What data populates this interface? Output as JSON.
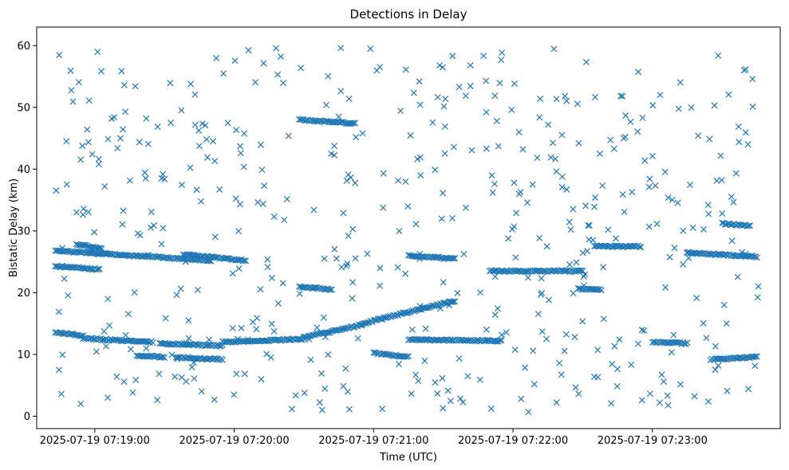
{
  "chart_data": {
    "type": "scatter",
    "title": "Detections in Delay",
    "xlabel": "Time (UTC)",
    "ylabel": "Bistatic Delay (km)",
    "marker": "x",
    "color": "#1f77b4",
    "grid": false,
    "legend": "none",
    "xlim": [
      "2025-07-19 07:18:35",
      "2025-07-19 07:23:55"
    ],
    "ylim": [
      -2,
      63
    ],
    "x_ticks": [
      "2025-07-19 07:19:00",
      "2025-07-19 07:20:00",
      "2025-07-19 07:21:00",
      "2025-07-19 07:22:00",
      "2025-07-19 07:23:00"
    ],
    "y_ticks": [
      0,
      10,
      20,
      30,
      40,
      50,
      60
    ],
    "time_range": [
      "2025-07-19 07:18:43",
      "2025-07-19 07:23:46"
    ],
    "tracks": [
      {
        "points": [
          [
            "2025-07-19 07:18:43",
            26.8
          ],
          [
            "2025-07-19 07:19:50",
            25.2
          ]
        ]
      },
      {
        "points": [
          [
            "2025-07-19 07:18:43",
            24.3
          ],
          [
            "2025-07-19 07:19:02",
            23.8
          ]
        ]
      },
      {
        "points": [
          [
            "2025-07-19 07:18:52",
            27.8
          ],
          [
            "2025-07-19 07:19:03",
            27.2
          ]
        ]
      },
      {
        "points": [
          [
            "2025-07-19 07:19:38",
            26.2
          ],
          [
            "2025-07-19 07:20:05",
            25.2
          ]
        ]
      },
      {
        "points": [
          [
            "2025-07-19 07:18:43",
            13.6
          ],
          [
            "2025-07-19 07:18:55",
            13.0
          ]
        ]
      },
      {
        "points": [
          [
            "2025-07-19 07:18:55",
            12.6
          ],
          [
            "2025-07-19 07:19:25",
            12.0
          ]
        ]
      },
      {
        "points": [
          [
            "2025-07-19 07:19:28",
            11.8
          ],
          [
            "2025-07-19 07:19:55",
            11.4
          ]
        ]
      },
      {
        "points": [
          [
            "2025-07-19 07:19:55",
            12.0
          ],
          [
            "2025-07-19 07:20:30",
            12.5
          ]
        ]
      },
      {
        "points": [
          [
            "2025-07-19 07:20:30",
            12.8
          ],
          [
            "2025-07-19 07:20:55",
            14.8
          ]
        ]
      },
      {
        "points": [
          [
            "2025-07-19 07:20:55",
            15.0
          ],
          [
            "2025-07-19 07:21:35",
            18.7
          ]
        ]
      },
      {
        "points": [
          [
            "2025-07-19 07:21:15",
            12.4
          ],
          [
            "2025-07-19 07:21:55",
            12.2
          ]
        ]
      },
      {
        "points": [
          [
            "2025-07-19 07:19:18",
            9.8
          ],
          [
            "2025-07-19 07:19:30",
            9.6
          ]
        ]
      },
      {
        "points": [
          [
            "2025-07-19 07:19:35",
            9.5
          ],
          [
            "2025-07-19 07:19:55",
            9.2
          ]
        ]
      },
      {
        "points": [
          [
            "2025-07-19 07:20:28",
            48.0
          ],
          [
            "2025-07-19 07:20:52",
            47.4
          ]
        ]
      },
      {
        "points": [
          [
            "2025-07-19 07:20:28",
            21.0
          ],
          [
            "2025-07-19 07:20:42",
            20.5
          ]
        ]
      },
      {
        "points": [
          [
            "2025-07-19 07:21:00",
            10.2
          ],
          [
            "2025-07-19 07:21:15",
            9.6
          ]
        ]
      },
      {
        "points": [
          [
            "2025-07-19 07:21:15",
            26.0
          ],
          [
            "2025-07-19 07:21:35",
            25.5
          ]
        ]
      },
      {
        "points": [
          [
            "2025-07-19 07:21:50",
            23.5
          ],
          [
            "2025-07-19 07:22:30",
            23.5
          ]
        ]
      },
      {
        "points": [
          [
            "2025-07-19 07:22:28",
            20.6
          ],
          [
            "2025-07-19 07:22:38",
            20.5
          ]
        ]
      },
      {
        "points": [
          [
            "2025-07-19 07:22:35",
            27.5
          ],
          [
            "2025-07-19 07:22:55",
            27.5
          ]
        ]
      },
      {
        "points": [
          [
            "2025-07-19 07:23:00",
            12.0
          ],
          [
            "2025-07-19 07:23:15",
            11.8
          ]
        ]
      },
      {
        "points": [
          [
            "2025-07-19 07:23:15",
            26.5
          ],
          [
            "2025-07-19 07:23:45",
            25.8
          ]
        ]
      },
      {
        "points": [
          [
            "2025-07-19 07:23:25",
            9.2
          ],
          [
            "2025-07-19 07:23:45",
            9.6
          ]
        ]
      },
      {
        "points": [
          [
            "2025-07-19 07:23:30",
            31.2
          ],
          [
            "2025-07-19 07:23:42",
            30.8
          ]
        ]
      }
    ],
    "scatter_count": 500
  }
}
